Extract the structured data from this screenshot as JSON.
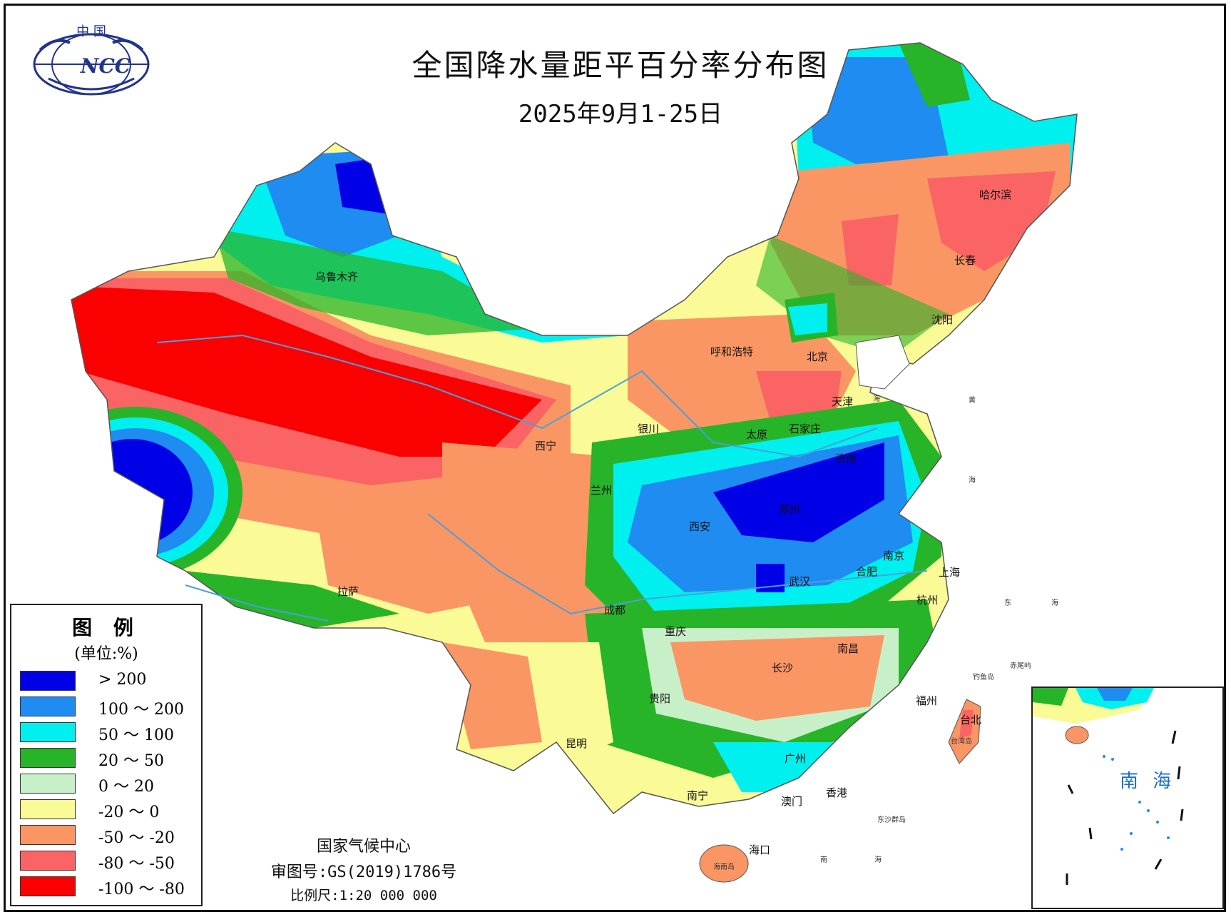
{
  "map": {
    "title": "全国降水量距平百分率分布图",
    "subtitle": "2025年9月1-25日",
    "publisher": "国家气候中心",
    "review_number": "审图号:GS(2019)1786号",
    "scale": "比例尺:1:20 000 000",
    "logo": {
      "top_text": "中 国",
      "text": "NCC",
      "icon": "ncc-globe-logo"
    }
  },
  "legend": {
    "title": "图 例",
    "unit": "(单位:%)",
    "items": [
      {
        "label": "> 200",
        "color": "#0000e6"
      },
      {
        "label": "100 ～ 200",
        "color": "#1e8cf0"
      },
      {
        "label": "50 ～ 100",
        "color": "#00f0f0"
      },
      {
        "label": "20 ～ 50",
        "color": "#28b428"
      },
      {
        "label": "0 ～ 20",
        "color": "#c8f0c8"
      },
      {
        "label": "-20 ～ 0",
        "color": "#fafa96"
      },
      {
        "label": "-50 ～ -20",
        "color": "#fa9664"
      },
      {
        "label": "-80 ～ -50",
        "color": "#fa6464"
      },
      {
        "label": "-100 ～ -80",
        "color": "#fa0000"
      }
    ]
  },
  "cities": [
    {
      "name": "哈尔滨"
    },
    {
      "name": "长春"
    },
    {
      "name": "沈阳"
    },
    {
      "name": "乌鲁木齐"
    },
    {
      "name": "呼和浩特"
    },
    {
      "name": "北京"
    },
    {
      "name": "天津"
    },
    {
      "name": "石家庄"
    },
    {
      "name": "太原"
    },
    {
      "name": "银川"
    },
    {
      "name": "西宁"
    },
    {
      "name": "兰州"
    },
    {
      "name": "济南"
    },
    {
      "name": "郑州"
    },
    {
      "name": "西安"
    },
    {
      "name": "南京"
    },
    {
      "name": "合肥"
    },
    {
      "name": "上海"
    },
    {
      "name": "武汉"
    },
    {
      "name": "杭州"
    },
    {
      "name": "成都"
    },
    {
      "name": "重庆"
    },
    {
      "name": "拉萨"
    },
    {
      "name": "南昌"
    },
    {
      "name": "长沙"
    },
    {
      "name": "贵阳"
    },
    {
      "name": "福州"
    },
    {
      "name": "台北"
    },
    {
      "name": "昆明"
    },
    {
      "name": "广州"
    },
    {
      "name": "南宁"
    },
    {
      "name": "香港"
    },
    {
      "name": "澳门"
    },
    {
      "name": "海口"
    }
  ],
  "water_labels": {
    "sea_bohai": "海",
    "sea_huang_1": "黄",
    "sea_huang_2": "海",
    "sea_east_1": "东",
    "sea_east_2": "海",
    "sea_south_1": "南",
    "sea_south_2": "海"
  },
  "islands": {
    "diaoyu": "钓鱼岛",
    "chiwei": "赤尾屿",
    "taiwan": "台湾岛",
    "hainan": "海南岛",
    "dongsha": "东沙群岛"
  },
  "inset": {
    "label": "南 海"
  }
}
